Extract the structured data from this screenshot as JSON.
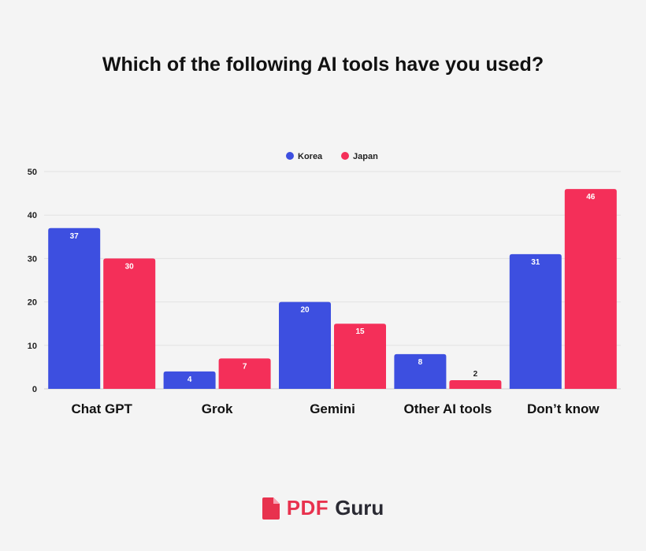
{
  "chart_data": {
    "type": "bar",
    "title": "Which of the following AI tools have you used?",
    "categories": [
      "Chat GPT",
      "Grok",
      "Gemini",
      "Other AI tools",
      "Don’t know"
    ],
    "series": [
      {
        "name": "Korea",
        "values": [
          37,
          4,
          20,
          8,
          31
        ],
        "color": "#3d4fe0"
      },
      {
        "name": "Japan",
        "values": [
          30,
          7,
          15,
          2,
          46
        ],
        "color": "#f42f59"
      }
    ],
    "ylim": [
      0,
      50
    ],
    "yticks": [
      0,
      10,
      20,
      30,
      40,
      50
    ],
    "grid": true,
    "legend_position": "top-center",
    "xlabel": "",
    "ylabel": ""
  },
  "branding": {
    "pdf": "PDF",
    "guru": "Guru",
    "icon": "pdf-document-icon"
  }
}
